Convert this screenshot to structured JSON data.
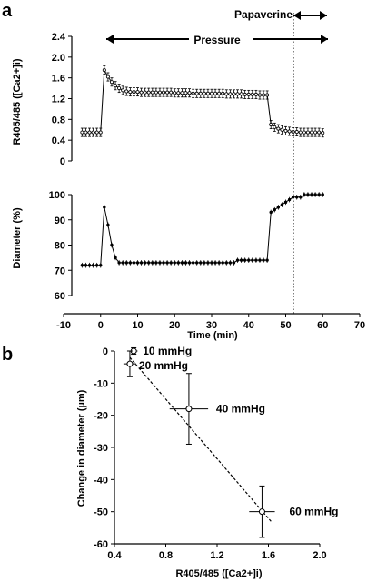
{
  "panels": {
    "a": "a",
    "b": "b"
  },
  "annotations": {
    "papaverine": "Papaverine",
    "pressure": "Pressure"
  },
  "chart_data": [
    {
      "type": "line",
      "ylabel": "R405/485 ([Ca2+]i)",
      "ylim": [
        0,
        2.4
      ],
      "yticks": [
        "0",
        "0.4",
        "0.8",
        "1.2",
        "1.6",
        "2.0",
        "2.4"
      ],
      "xlim": [
        -10,
        70
      ],
      "series": [
        {
          "x": [
            -5,
            -4,
            -3,
            -2,
            -1,
            0,
            1,
            2,
            3,
            4,
            5,
            6,
            7,
            8,
            9,
            10,
            11,
            12,
            13,
            14,
            15,
            16,
            17,
            18,
            19,
            20,
            21,
            22,
            23,
            24,
            25,
            26,
            27,
            28,
            29,
            30,
            31,
            32,
            33,
            34,
            35,
            36,
            37,
            38,
            39,
            40,
            41,
            42,
            43,
            44,
            45,
            46,
            47,
            48,
            49,
            50,
            51,
            52,
            53,
            54,
            55,
            56,
            57,
            58,
            59,
            60
          ],
          "y": [
            0.55,
            0.55,
            0.55,
            0.55,
            0.55,
            0.55,
            1.75,
            1.62,
            1.52,
            1.45,
            1.4,
            1.36,
            1.34,
            1.33,
            1.33,
            1.33,
            1.32,
            1.32,
            1.32,
            1.32,
            1.32,
            1.32,
            1.32,
            1.32,
            1.32,
            1.31,
            1.31,
            1.31,
            1.31,
            1.31,
            1.3,
            1.3,
            1.3,
            1.3,
            1.3,
            1.3,
            1.3,
            1.3,
            1.3,
            1.29,
            1.29,
            1.29,
            1.29,
            1.29,
            1.28,
            1.28,
            1.28,
            1.28,
            1.27,
            1.27,
            1.27,
            0.7,
            0.65,
            0.62,
            0.6,
            0.58,
            0.57,
            0.56,
            0.56,
            0.55,
            0.55,
            0.55,
            0.55,
            0.55,
            0.55,
            0.54
          ],
          "err": 0.08
        }
      ]
    },
    {
      "type": "line",
      "ylabel": "Diameter (%)",
      "xlabel": "Time (min)",
      "ylim": [
        60,
        100
      ],
      "yticks": [
        "60",
        "70",
        "80",
        "90",
        "100"
      ],
      "xlim": [
        -10,
        70
      ],
      "xticks": [
        "-10",
        "0",
        "10",
        "20",
        "30",
        "40",
        "50",
        "60",
        "70"
      ],
      "series": [
        {
          "x": [
            -5,
            -4,
            -3,
            -2,
            -1,
            0,
            1,
            2,
            3,
            4,
            5,
            6,
            7,
            8,
            9,
            10,
            11,
            12,
            13,
            14,
            15,
            16,
            17,
            18,
            19,
            20,
            21,
            22,
            23,
            24,
            25,
            26,
            27,
            28,
            29,
            30,
            31,
            32,
            33,
            34,
            35,
            36,
            37,
            38,
            39,
            40,
            41,
            42,
            43,
            44,
            45,
            46,
            47,
            48,
            49,
            50,
            51,
            52,
            53,
            54,
            55,
            56,
            57,
            58,
            59,
            60
          ],
          "y": [
            72,
            72,
            72,
            72,
            72,
            72,
            95,
            88,
            80,
            75,
            73,
            73,
            73,
            73,
            73,
            73,
            73,
            73,
            73,
            73,
            73,
            73,
            73,
            73,
            73,
            73,
            73,
            73,
            73,
            73,
            73,
            73,
            73,
            73,
            73,
            73,
            73,
            73,
            73,
            73,
            73,
            73,
            74,
            74,
            74,
            74,
            74,
            74,
            74,
            74,
            74,
            93,
            94,
            95,
            96,
            97,
            98,
            99,
            99,
            99,
            100,
            100,
            100,
            100,
            100,
            100
          ],
          "err": 1.0
        }
      ]
    },
    {
      "type": "scatter",
      "xlabel": "R405/485 ([Ca2+]i)",
      "ylabel": "Change in diameter (µm)",
      "xlim": [
        0.4,
        2.0
      ],
      "ylim": [
        -60,
        0
      ],
      "xticks": [
        "0.4",
        "0.8",
        "1.2",
        "1.6",
        "2.0"
      ],
      "yticks": [
        "0",
        "-10",
        "-20",
        "-30",
        "-40",
        "-50",
        "-60"
      ],
      "points": [
        {
          "x": 0.55,
          "y": 0,
          "label": "10 mmHg",
          "xerr": 0.03,
          "yerr": 1
        },
        {
          "x": 0.52,
          "y": -4,
          "label": "20 mmHg",
          "xerr": 0.05,
          "yerr": 4
        },
        {
          "x": 0.98,
          "y": -18,
          "label": "40 mmHg",
          "xerr": 0.15,
          "yerr": 11
        },
        {
          "x": 1.55,
          "y": -50,
          "label": "60 mmHg",
          "xerr": 0.1,
          "yerr": 8
        }
      ],
      "trendline": [
        [
          0.52,
          -2
        ],
        [
          1.62,
          -53
        ]
      ]
    }
  ]
}
